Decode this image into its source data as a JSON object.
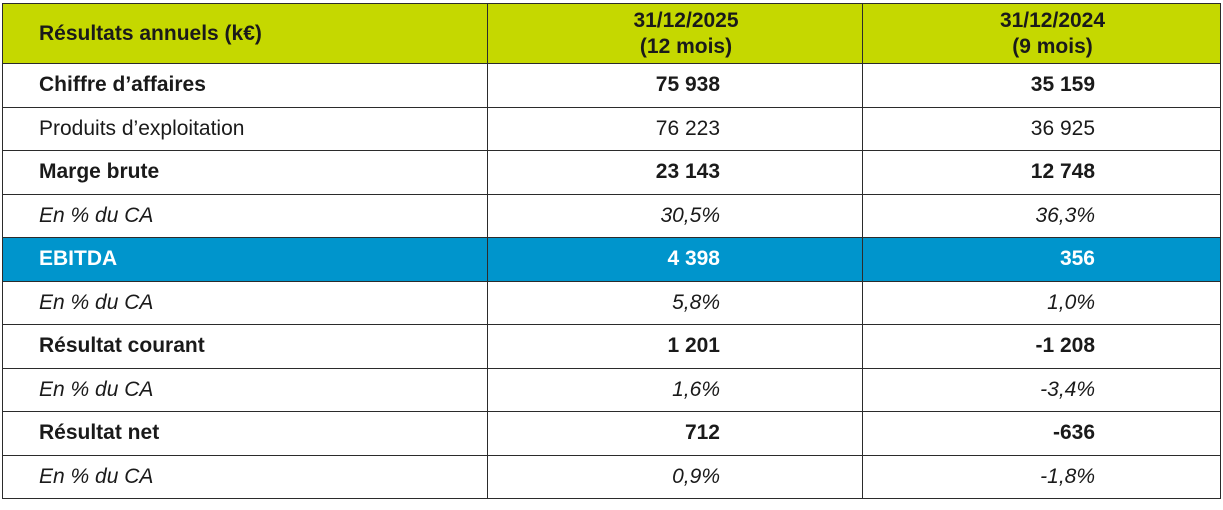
{
  "table": {
    "header": {
      "label": "Résultats annuels (k€)",
      "col1_line1": "31/12/2025",
      "col1_line2": "(12 mois)",
      "col2_line1": "31/12/2024",
      "col2_line2": "(9 mois)"
    },
    "rows": [
      {
        "label": "Chiffre d’affaires",
        "v2025": "75 938",
        "v2024": "35 159"
      },
      {
        "label": "Produits d’exploitation",
        "v2025": "76 223",
        "v2024": "36 925"
      },
      {
        "label": "Marge brute",
        "v2025": "23 143",
        "v2024": "12 748"
      },
      {
        "label": "En % du CA",
        "v2025": "30,5%",
        "v2024": "36,3%"
      },
      {
        "label": "EBITDA",
        "v2025": "4 398",
        "v2024": "356"
      },
      {
        "label": "En % du CA",
        "v2025": "5,8%",
        "v2024": "1,0%"
      },
      {
        "label": "Résultat courant",
        "v2025": "1 201",
        "v2024": "-1 208"
      },
      {
        "label": "En % du CA",
        "v2025": "1,6%",
        "v2024": "-3,4%"
      },
      {
        "label": "Résultat net",
        "v2025": "712",
        "v2024": "-636"
      },
      {
        "label": "En % du CA",
        "v2025": "0,9%",
        "v2024": "-1,8%"
      }
    ]
  },
  "colors": {
    "header_background": "#c5d800",
    "highlight_background": "#0095cc",
    "highlight_text": "#ffffff",
    "border": "#2b2b2b"
  }
}
